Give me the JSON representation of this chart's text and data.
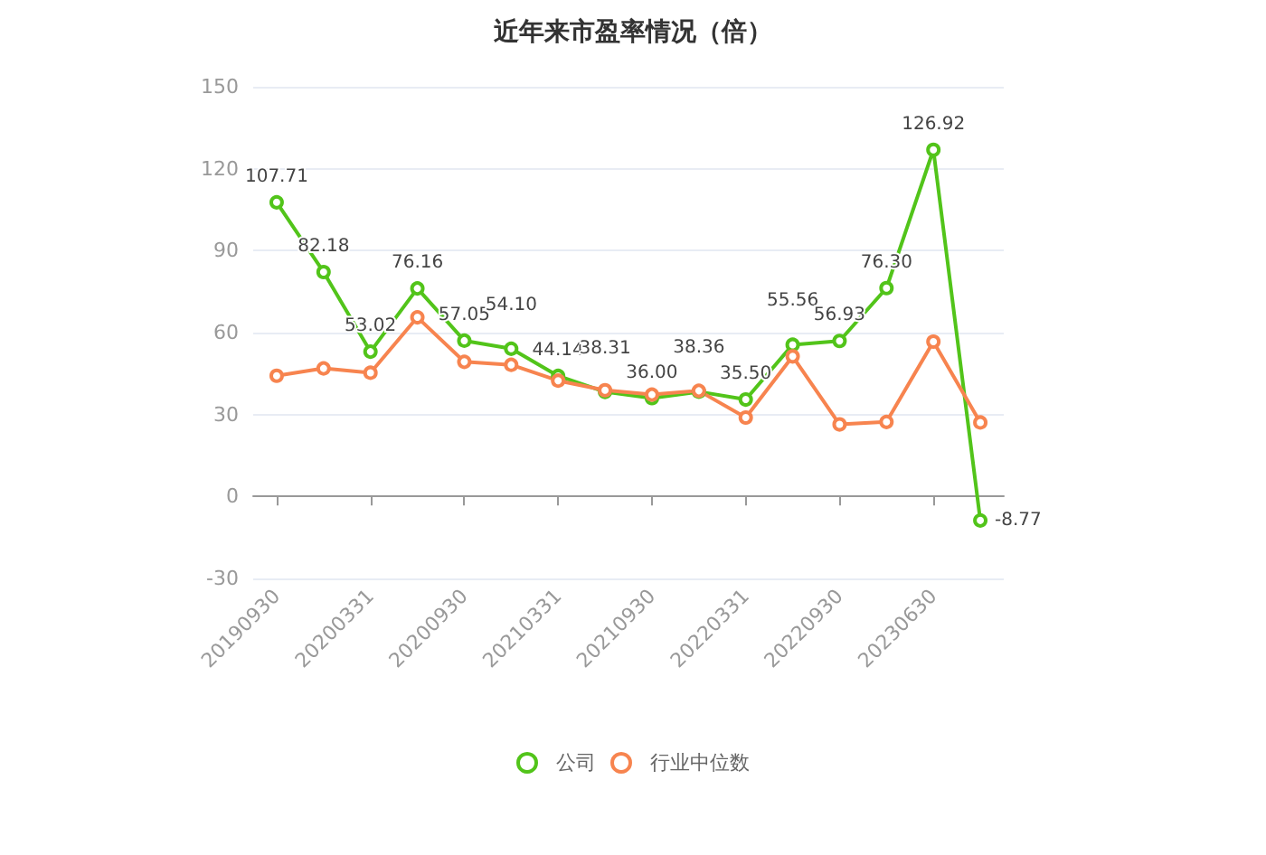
{
  "chart_data": {
    "type": "line",
    "title": "近年来市盈率情况（倍）",
    "categories": [
      "20190930",
      null,
      "20200331",
      null,
      "20200930",
      null,
      "20210331",
      null,
      "20210930",
      null,
      "20220331",
      null,
      "20220930",
      null,
      "20230630",
      null
    ],
    "series": [
      {
        "name": "公司",
        "color": "#52c41a",
        "values": [
          107.71,
          82.18,
          53.02,
          76.16,
          57.05,
          54.1,
          44.14,
          38.31,
          36.0,
          38.36,
          35.5,
          55.56,
          56.93,
          76.3,
          126.92,
          -8.77
        ],
        "value_labels": [
          "107.71",
          "82.18",
          "53.02",
          "76.16",
          "57.05",
          "54.10",
          "44.14",
          "38.31",
          "36.00",
          "38.36",
          "35.50",
          "55.56",
          "56.93",
          "76.30",
          "126.92",
          "-8.77"
        ]
      },
      {
        "name": "行业中位数",
        "color": "#f7844f",
        "values": [
          44.2,
          46.9,
          45.3,
          65.6,
          49.3,
          48.2,
          42.4,
          38.9,
          37.3,
          38.7,
          28.9,
          51.3,
          26.4,
          27.3,
          56.7,
          27.1
        ]
      }
    ],
    "ylim": [
      -30,
      150
    ],
    "yticks": [
      -30,
      0,
      30,
      60,
      90,
      120,
      150
    ],
    "grid": "y",
    "legend": "bottom",
    "marker": "circle",
    "line_style": "solid"
  }
}
